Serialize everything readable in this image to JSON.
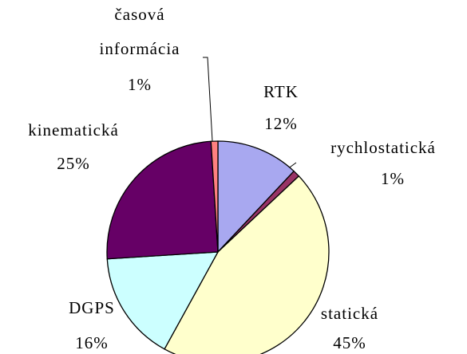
{
  "chart_data": {
    "type": "pie",
    "categories": [
      "RTK",
      "rychlostatická",
      "statická",
      "DGPS",
      "kinematická",
      "časová informácia"
    ],
    "values": [
      12,
      1,
      45,
      16,
      25,
      1
    ],
    "value_labels": [
      "12%",
      "1%",
      "45%",
      "16%",
      "25%",
      "1%"
    ],
    "colors": [
      "#A8A8F0",
      "#993366",
      "#FFFFCC",
      "#CCFFFF",
      "#660066",
      "#FF8080"
    ]
  }
}
